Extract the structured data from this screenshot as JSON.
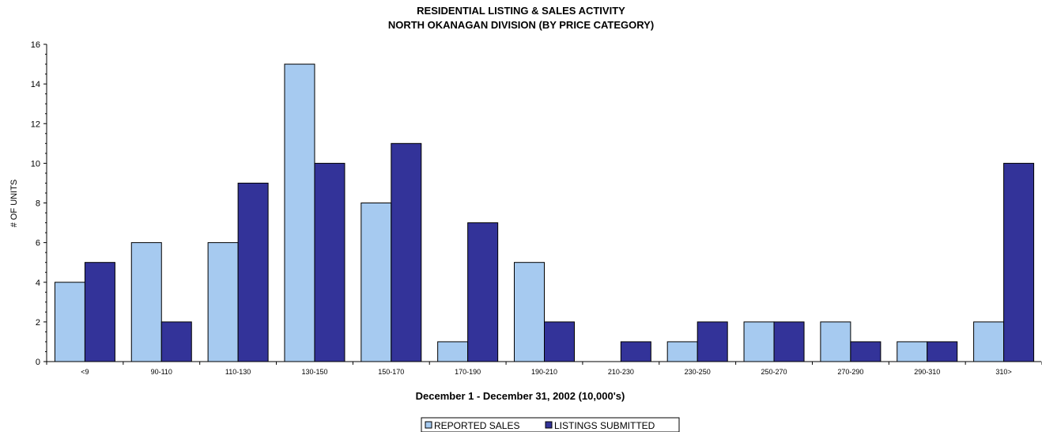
{
  "chart_data": {
    "type": "bar",
    "title": "RESIDENTIAL LISTING & SALES ACTIVITY",
    "subtitle": "NORTH OKANAGAN DIVISION (BY PRICE CATEGORY)",
    "xlabel": "December 1 - December 31, 2002 (10,000's)",
    "ylabel": "# OF UNITS",
    "ylim": [
      0,
      16
    ],
    "yticks": [
      0,
      2,
      4,
      6,
      8,
      10,
      12,
      14,
      16
    ],
    "categories": [
      "<9",
      "90-110",
      "110-130",
      "130-150",
      "150-170",
      "170-190",
      "190-210",
      "210-230",
      "230-250",
      "250-270",
      "270-290",
      "290-310",
      "310>"
    ],
    "series": [
      {
        "name": "REPORTED SALES",
        "color": "#a6caf0",
        "values": [
          4,
          6,
          6,
          15,
          8,
          1,
          5,
          0,
          1,
          2,
          2,
          1,
          2
        ]
      },
      {
        "name": "LISTINGS SUBMITTED",
        "color": "#333399",
        "values": [
          5,
          2,
          9,
          10,
          11,
          7,
          2,
          1,
          2,
          2,
          1,
          1,
          10
        ]
      }
    ],
    "grid": false,
    "legend_position": "bottom-center"
  }
}
